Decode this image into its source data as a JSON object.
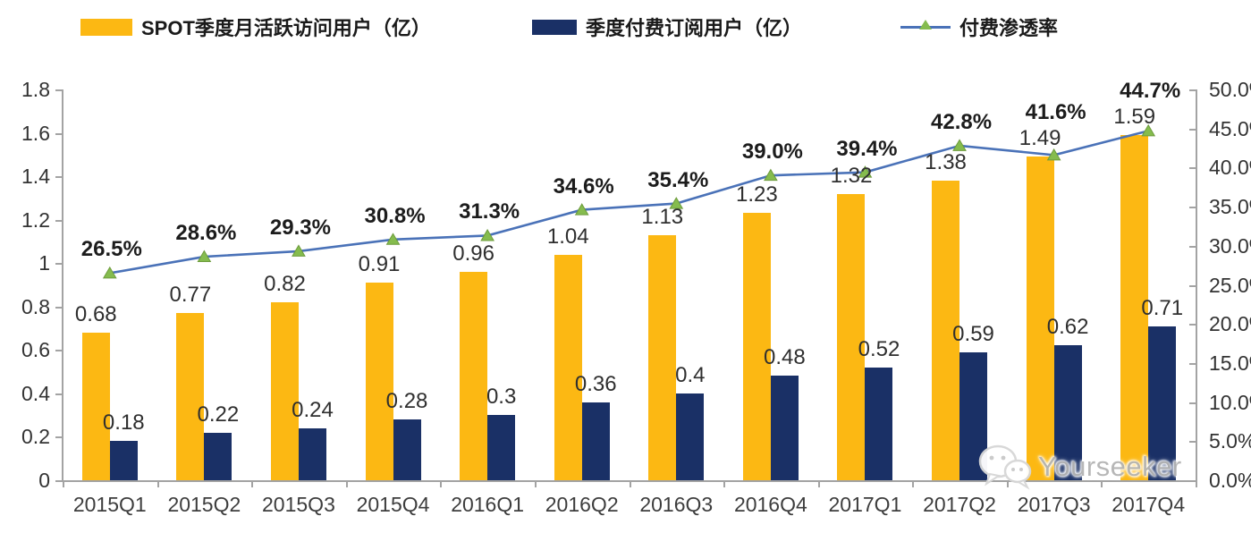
{
  "legend": [
    {
      "label": "SPOT季度月活跃访问用户（亿）",
      "swatch": "bar",
      "color": "#FCB813"
    },
    {
      "label": "季度付费订阅用户（亿）",
      "swatch": "bar",
      "color": "#1A3066"
    },
    {
      "label": "付费渗透率",
      "swatch": "line",
      "color": "#4A72B8",
      "marker_color": "#85BC4E"
    }
  ],
  "chart_data": {
    "type": "bar",
    "subtype": "grouped-bars-with-line-combo",
    "title": "",
    "categories": [
      "2015Q1",
      "2015Q2",
      "2015Q3",
      "2015Q4",
      "2016Q1",
      "2016Q2",
      "2016Q3",
      "2016Q4",
      "2017Q1",
      "2017Q2",
      "2017Q3",
      "2017Q4"
    ],
    "series": [
      {
        "name": "SPOT季度月活跃访问用户（亿）",
        "type": "bar",
        "axis": "left",
        "color": "#FCB813",
        "values": [
          0.68,
          0.77,
          0.82,
          0.91,
          0.96,
          1.04,
          1.13,
          1.23,
          1.32,
          1.38,
          1.49,
          1.59
        ]
      },
      {
        "name": "季度付费订阅用户（亿）",
        "type": "bar",
        "axis": "left",
        "color": "#1A3066",
        "values": [
          0.18,
          0.22,
          0.24,
          0.28,
          0.3,
          0.36,
          0.4,
          0.48,
          0.52,
          0.59,
          0.62,
          0.71
        ]
      },
      {
        "name": "付费渗透率",
        "type": "line",
        "axis": "right",
        "color": "#4A72B8",
        "marker": "triangle",
        "marker_color": "#85BC4E",
        "values_pct": [
          26.5,
          28.6,
          29.3,
          30.8,
          31.3,
          34.6,
          35.4,
          39.0,
          39.4,
          42.8,
          41.6,
          44.7
        ]
      }
    ],
    "value_labels": {
      "mau": [
        "0.68",
        "0.77",
        "0.82",
        "0.91",
        "0.96",
        "1.04",
        "1.13",
        "1.23",
        "1.32",
        "1.38",
        "1.49",
        "1.59"
      ],
      "subs": [
        "0.18",
        "0.22",
        "0.24",
        "0.28",
        "0.3",
        "0.36",
        "0.4",
        "0.48",
        "0.52",
        "0.59",
        "0.62",
        "0.71"
      ],
      "pct": [
        "26.5%",
        "28.6%",
        "29.3%",
        "30.8%",
        "31.3%",
        "34.6%",
        "35.4%",
        "39.0%",
        "39.4%",
        "42.8%",
        "41.6%",
        "44.7%"
      ]
    },
    "left_axis": {
      "min": 0,
      "max": 1.8,
      "ticks": [
        "0",
        "0.2",
        "0.4",
        "0.6",
        "0.8",
        "1",
        "1.2",
        "1.4",
        "1.6",
        "1.8"
      ]
    },
    "right_axis": {
      "min": 0,
      "max": 50,
      "ticks": [
        "0.0%",
        "5.0%",
        "10.0%",
        "15.0%",
        "20.0%",
        "25.0%",
        "30.0%",
        "35.0%",
        "40.0%",
        "45.0%",
        "50.0%"
      ]
    },
    "grid": false,
    "legend_position": "top"
  },
  "watermark": {
    "text": "Yourseeker",
    "icon": "wechat-icon"
  },
  "colors": {
    "bar_mau": "#FCB813",
    "bar_subs": "#1A3066",
    "line": "#4A72B8",
    "marker": "#85BC4E",
    "marker_edge": "#6d9b3c",
    "axis": "#a3a3a3",
    "text": "#2f2f2f",
    "watermark_text": "#b5b5b5"
  }
}
